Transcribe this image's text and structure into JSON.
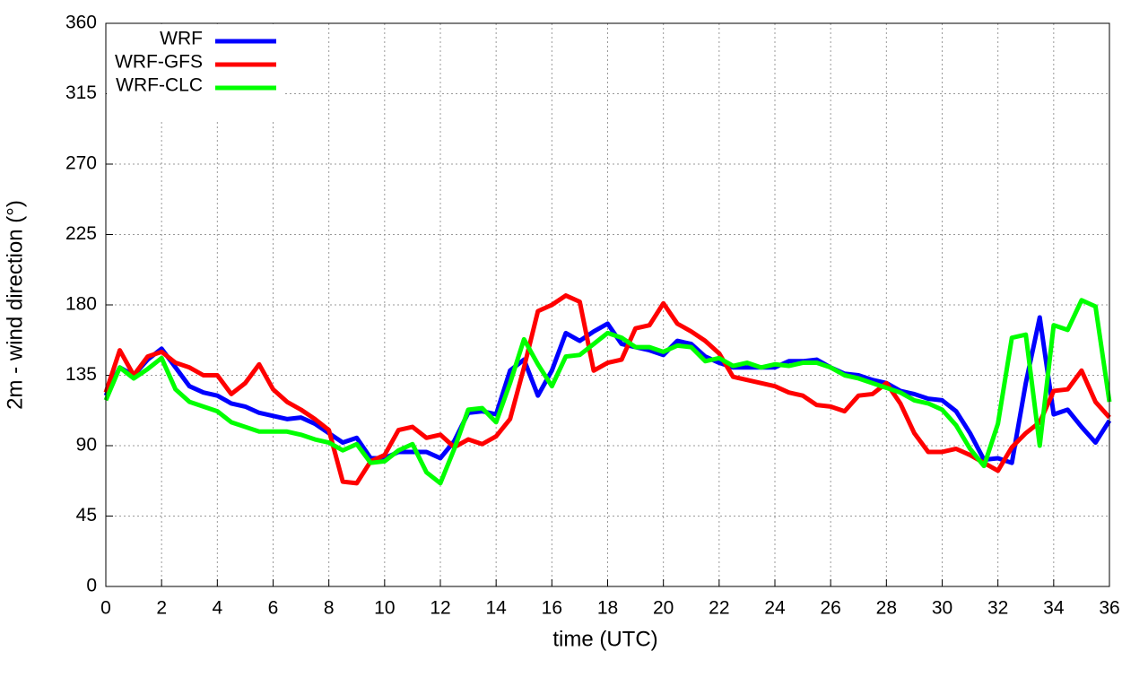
{
  "chart_data": {
    "type": "line",
    "xlabel": "time (UTC)",
    "ylabel": "2m - wind direction (°)",
    "x": [
      0,
      0.5,
      1,
      1.5,
      2,
      2.5,
      3,
      3.5,
      4,
      4.5,
      5,
      5.5,
      6,
      6.5,
      7,
      7.5,
      8,
      8.5,
      9,
      9.5,
      10,
      10.5,
      11,
      11.5,
      12,
      12.5,
      13,
      13.5,
      14,
      14.5,
      15,
      15.5,
      16,
      16.5,
      17,
      17.5,
      18,
      18.5,
      19,
      19.5,
      20,
      20.5,
      21,
      21.5,
      22,
      22.5,
      23,
      23.5,
      24,
      24.5,
      25,
      25.5,
      26,
      26.5,
      27,
      27.5,
      28,
      28.5,
      29,
      29.5,
      30,
      30.5,
      31,
      31.5,
      32,
      32.5,
      33,
      33.5,
      34,
      34.5,
      35,
      35.5,
      36
    ],
    "series": [
      {
        "name": "WRF",
        "color": "#0000ff",
        "values": [
          122,
          140,
          135,
          145,
          152,
          140,
          128,
          124,
          122,
          117,
          115,
          111,
          109,
          107,
          108,
          104,
          98,
          92,
          95,
          82,
          82,
          86,
          86,
          86,
          82,
          93,
          111,
          112,
          110,
          138,
          145,
          122,
          138,
          162,
          157,
          163,
          168,
          155,
          153,
          151,
          148,
          157,
          155,
          147,
          143,
          140,
          140,
          140,
          140,
          144,
          144,
          145,
          140,
          136,
          135,
          132,
          130,
          125,
          123,
          120,
          119,
          112,
          98,
          81,
          82,
          79,
          130,
          172,
          110,
          113,
          102,
          92,
          106
        ]
      },
      {
        "name": "WRF-GFS",
        "color": "#ff0000",
        "values": [
          124,
          151,
          135,
          147,
          150,
          143,
          140,
          135,
          135,
          123,
          130,
          142,
          126,
          118,
          113,
          107,
          100,
          67,
          66,
          80,
          84,
          100,
          102,
          95,
          97,
          89,
          94,
          91,
          96,
          107,
          140,
          176,
          180,
          186,
          182,
          138,
          143,
          145,
          165,
          167,
          181,
          168,
          163,
          157,
          149,
          134,
          132,
          130,
          128,
          124,
          122,
          116,
          115,
          112,
          122,
          123,
          130,
          117,
          98,
          86,
          86,
          88,
          84,
          79,
          74,
          89,
          98,
          105,
          125,
          126,
          138,
          118,
          108
        ]
      },
      {
        "name": "WRF-CLC",
        "color": "#00ff00",
        "values": [
          119,
          140,
          133,
          139,
          146,
          126,
          118,
          115,
          112,
          105,
          102,
          99,
          99,
          99,
          97,
          94,
          92,
          87,
          91,
          79,
          80,
          87,
          91,
          73,
          66,
          88,
          113,
          114,
          105,
          130,
          158,
          142,
          128,
          147,
          148,
          155,
          162,
          159,
          153,
          153,
          150,
          154,
          153,
          144,
          146,
          141,
          143,
          140,
          142,
          141,
          143,
          143,
          140,
          135,
          133,
          130,
          127,
          124,
          119,
          117,
          113,
          103,
          88,
          77,
          104,
          159,
          161,
          90,
          167,
          164,
          183,
          179,
          118
        ]
      }
    ],
    "xlim": [
      0,
      36
    ],
    "xticks": [
      0,
      2,
      4,
      6,
      8,
      10,
      12,
      14,
      16,
      18,
      20,
      22,
      24,
      26,
      28,
      30,
      32,
      34,
      36
    ],
    "ylim": [
      0,
      360
    ],
    "yticks": [
      0,
      45,
      90,
      135,
      180,
      225,
      270,
      315,
      360
    ],
    "grid": true,
    "legend": "top-left"
  }
}
